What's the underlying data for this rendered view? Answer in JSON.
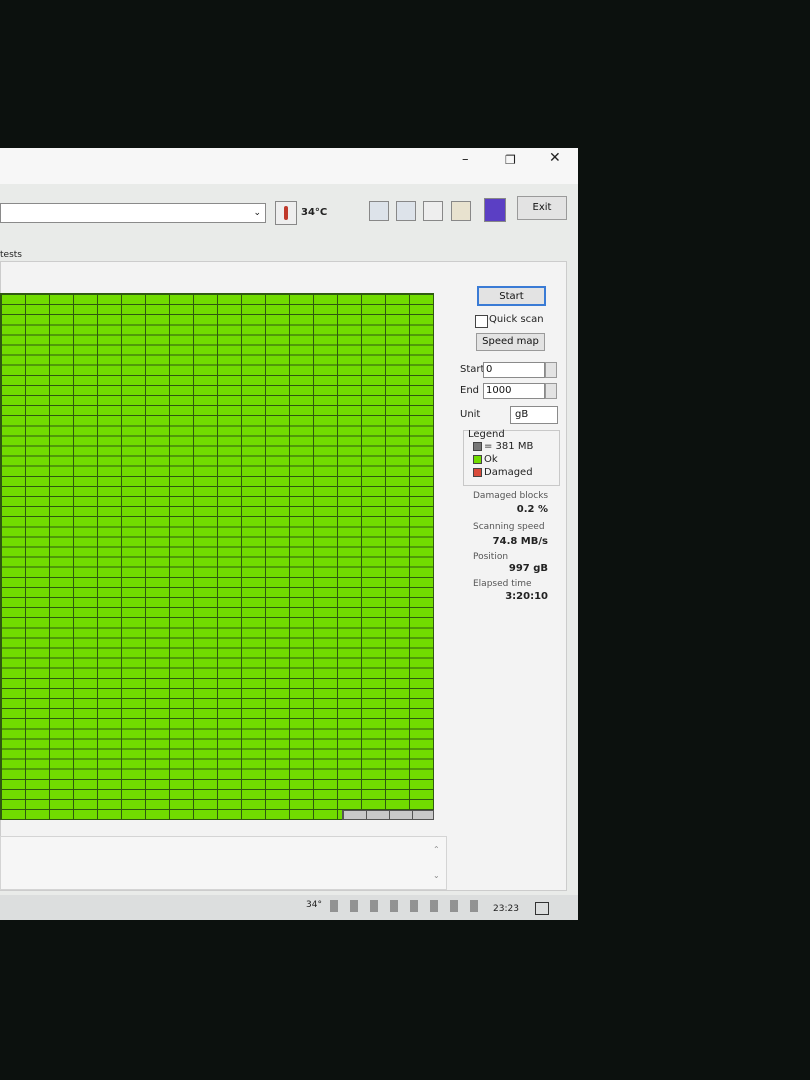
{
  "toolbar": {
    "temperature": "34°C",
    "exit": "Exit"
  },
  "tab": "tests",
  "controls": {
    "start_button": "Start",
    "quick_scan": "Quick scan",
    "speed_map": "Speed map",
    "start_label": "Start",
    "start_value": "0",
    "end_label": "End",
    "end_value": "1000",
    "unit_label": "Unit",
    "unit_value": "gB"
  },
  "legend": {
    "title": "Legend",
    "block": "= 381 MB",
    "ok": "Ok",
    "damaged": "Damaged"
  },
  "stats": [
    {
      "label": "Damaged blocks",
      "value": "0.2 %"
    },
    {
      "label": "Scanning speed",
      "value": "74.8 MB/s"
    },
    {
      "label": "Position",
      "value": "997 gB"
    },
    {
      "label": "Elapsed time",
      "value": "3:20:10"
    }
  ],
  "taskbar": {
    "temperature": "34°",
    "clock": "23:23"
  }
}
